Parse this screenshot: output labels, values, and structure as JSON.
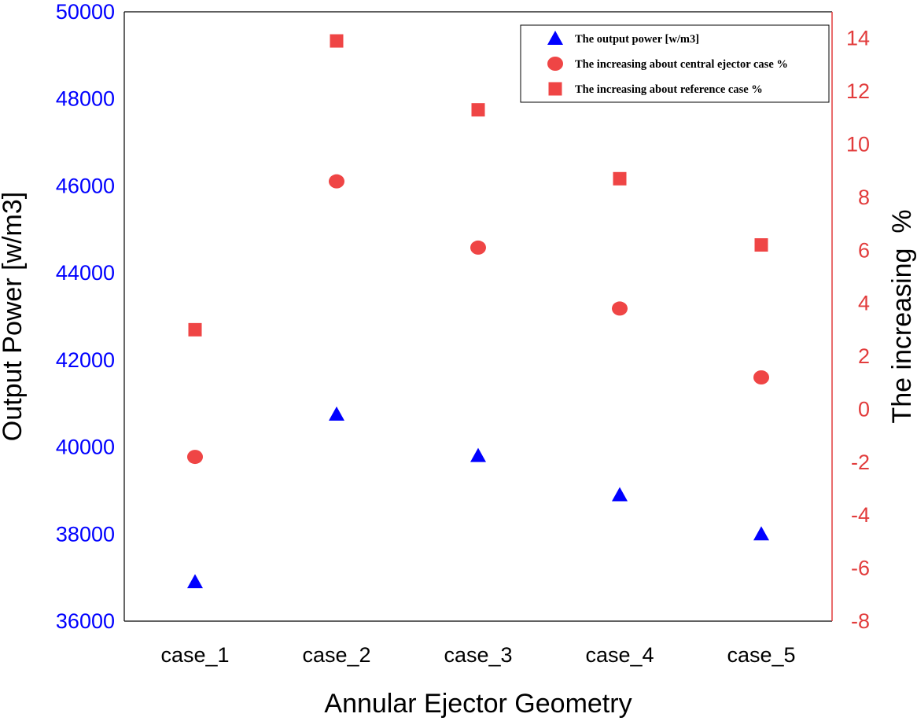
{
  "chart_data": {
    "type": "scatter",
    "categories": [
      "case_1",
      "case_2",
      "case_3",
      "case_4",
      "case_5"
    ],
    "xlabel": "Annular Ejector Geometry",
    "ylabel_left": "Output Power [w/m3]",
    "ylabel_right": "The increasing  %",
    "ylim_left": [
      36000,
      50000
    ],
    "yticks_left": [
      "36000",
      "38000",
      "40000",
      "42000",
      "44000",
      "46000",
      "48000",
      "50000"
    ],
    "ylim_right": [
      -8,
      15
    ],
    "yticks_right": [
      "-8",
      "-6",
      "-4",
      "-2",
      "0",
      "2",
      "4",
      "6",
      "8",
      "10",
      "12",
      "14"
    ],
    "series": [
      {
        "name": "The output power [w/m3]",
        "axis": "left",
        "marker": "triangle",
        "color": "#0000ff",
        "values": [
          36900,
          40750,
          39800,
          38900,
          38000
        ]
      },
      {
        "name": "The increasing about central ejector case %",
        "axis": "right",
        "marker": "circle",
        "color": "#ef4545",
        "values": [
          -1.8,
          8.6,
          6.1,
          3.8,
          1.2
        ]
      },
      {
        "name": "The increasing about reference case %",
        "axis": "right",
        "marker": "square",
        "color": "#ef4545",
        "values": [
          3.0,
          13.9,
          11.3,
          8.7,
          6.2
        ]
      }
    ],
    "legend_position": "top-right",
    "grid": false,
    "colors": {
      "left_axis": "#0000ff",
      "right_axis": "#e23c3c",
      "frame": "#000000"
    }
  }
}
